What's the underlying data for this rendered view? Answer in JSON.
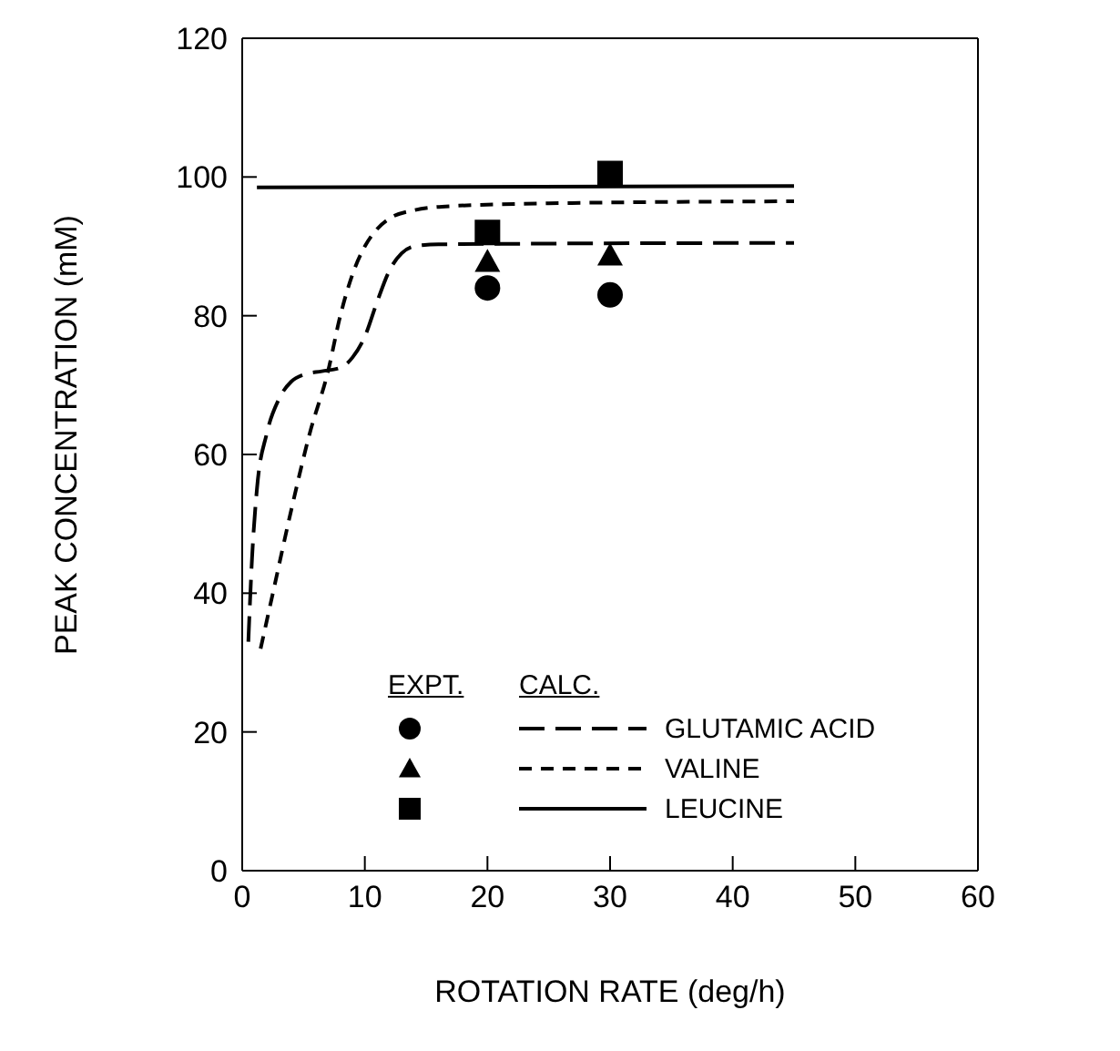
{
  "chart_data": {
    "type": "line",
    "xlabel": "ROTATION RATE (deg/h)",
    "ylabel": "PEAK CONCENTRATION (mM)",
    "xlim": [
      0,
      60
    ],
    "xticks": [
      0,
      10,
      20,
      30,
      40,
      50,
      60
    ],
    "ylim": [
      0,
      120
    ],
    "yticks": [
      0,
      20,
      40,
      60,
      80,
      100,
      120
    ],
    "legend": "center",
    "annotations": [
      "EXPT.",
      "CALC."
    ],
    "series": [
      {
        "type": "scatter",
        "marker": "circle",
        "color": "#000000",
        "x": [
          20,
          30
        ],
        "values": [
          84,
          83
        ]
      },
      {
        "type": "scatter",
        "marker": "triangle",
        "color": "#000000",
        "x": [
          20,
          30
        ],
        "values": [
          87.8,
          88.7
        ]
      },
      {
        "type": "scatter",
        "marker": "square",
        "color": "#000000",
        "x": [
          20,
          30
        ],
        "values": [
          92,
          100.5
        ]
      },
      {
        "name": "GLUTAMIC ACID",
        "line_style": "dashed",
        "color": "#000000",
        "x": [
          0.5,
          0.8,
          1.2,
          2,
          3,
          4,
          5,
          6.5,
          8,
          9,
          10,
          11,
          12,
          13,
          14,
          16,
          45
        ],
        "values": [
          33,
          45,
          55,
          63,
          68,
          70.5,
          71.5,
          72,
          72.5,
          74,
          77,
          82,
          86.5,
          89,
          90,
          90.3,
          90.5
        ]
      },
      {
        "name": "VALINE",
        "line_style": "dashed",
        "color": "#000000",
        "x": [
          1.5,
          2.5,
          4,
          5.5,
          7,
          8,
          9,
          10,
          11,
          12,
          14,
          17,
          25,
          45
        ],
        "values": [
          32,
          40,
          52,
          63,
          72,
          80,
          86,
          90,
          92.5,
          94,
          95.2,
          95.8,
          96.2,
          96.5
        ]
      },
      {
        "name": "LEUCINE",
        "line_style": "solid",
        "color": "#000000",
        "x": [
          1.2,
          45
        ],
        "values": [
          98.5,
          98.7
        ]
      }
    ]
  }
}
